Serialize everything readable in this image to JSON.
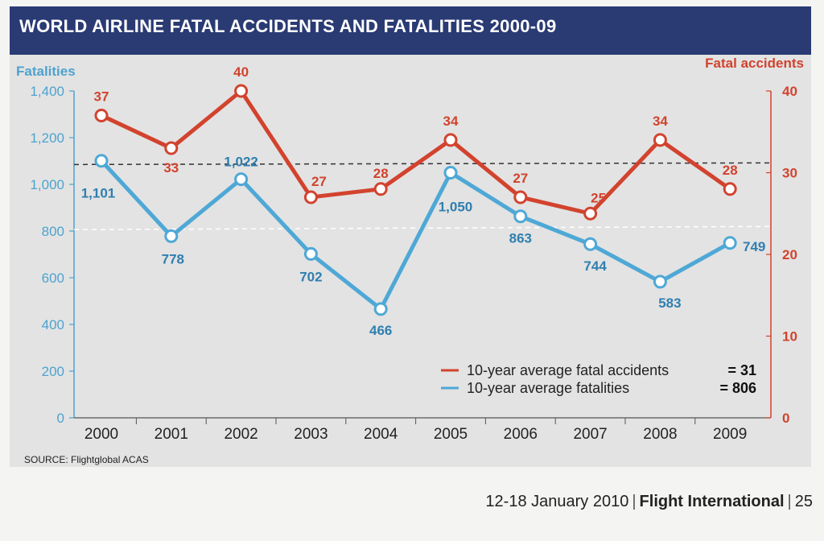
{
  "chart_data": {
    "type": "line",
    "title": "WORLD AIRLINE FATAL ACCIDENTS AND FATALITIES 2000-09",
    "source": "SOURCE: Flightglobal ACAS",
    "categories": [
      "2000",
      "2001",
      "2002",
      "2003",
      "2004",
      "2005",
      "2006",
      "2007",
      "2008",
      "2009"
    ],
    "left_axis": {
      "label": "Fatalities",
      "ylim": [
        0,
        1400
      ],
      "ticks": [
        "0",
        "200",
        "400",
        "600",
        "800",
        "1,000",
        "1,200",
        "1,400"
      ],
      "color": "#4da3cf"
    },
    "right_axis": {
      "label": "Fatal accidents",
      "ylim": [
        0,
        40
      ],
      "ticks": [
        "0",
        "10",
        "20",
        "30",
        "40"
      ],
      "color": "#d2432e"
    },
    "series": [
      {
        "name": "10-year average fatal accidents",
        "axis": "right",
        "color": "#d2432e",
        "values": [
          37,
          33,
          40,
          27,
          28,
          34,
          27,
          25,
          34,
          28
        ],
        "labels": [
          "37",
          "33",
          "40",
          "27",
          "28",
          "34",
          "27",
          "25",
          "34",
          "28"
        ]
      },
      {
        "name": "10-year average fatalities",
        "axis": "left",
        "color": "#4ea8d6",
        "values": [
          1101,
          778,
          1022,
          702,
          466,
          1050,
          863,
          744,
          583,
          749
        ],
        "labels": [
          "1,101",
          "778",
          "1,022",
          "702",
          "466",
          "1,050",
          "863",
          "744",
          "583",
          "749"
        ]
      }
    ],
    "averages": {
      "accidents": 31,
      "accidents_label": "= 31",
      "fatalities": 806,
      "fatalities_label": "= 806"
    },
    "legend": [
      {
        "label": "10-year average fatal accidents",
        "value": "= 31",
        "color": "#d2432e"
      },
      {
        "label": "10-year average fatalities",
        "value": "= 806",
        "color": "#4ea8d6"
      }
    ],
    "legend_position": "bottom-right",
    "grid": false
  },
  "footer": {
    "date": "12-18 January 2010",
    "magazine": "Flight International",
    "page": "25"
  }
}
